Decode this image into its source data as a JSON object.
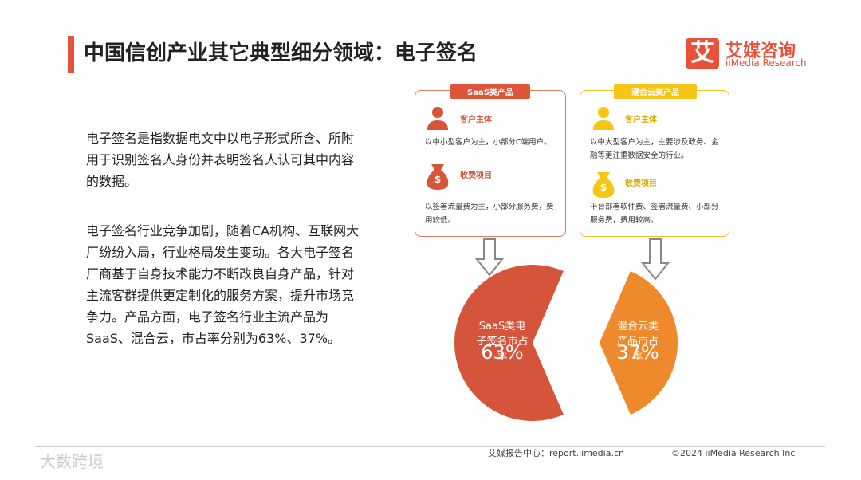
{
  "header": {
    "title": "中国信创产业其它典型细分领域：电子签名",
    "logo_mark": "艾",
    "logo_cn": "艾媒咨询",
    "logo_en": "iiMedia Research"
  },
  "body": {
    "paragraphs": [
      "电子签名是指数据电文中以电子形式所含、所附用于识别签名人身份并表明签名人认可其中内容的数据。",
      "电子签名行业竞争加剧，随着CA机构、互联网大厂纷纷入局，行业格局发生变动。各大电子签名厂商基于自身技术能力不断改良自身产品，针对主流客群提供更定制化的服务方案，提升市场竞争力。产品方面，电子签名行业主流产品为SaaS、混合云，市占率分别为63%、37%。"
    ]
  },
  "cards": [
    {
      "tag": "SaaS类产品",
      "sections": [
        {
          "heading": "客户主体",
          "text": "以中小型客户为主，小部分C端用户。"
        },
        {
          "heading": "收费项目",
          "icon": "$",
          "text": "以签署流量费为主，小部分服务费，费用较低。"
        }
      ]
    },
    {
      "tag": "混合云类产品",
      "sections": [
        {
          "heading": "客户主体",
          "text": "以中大型客户为主，主要涉及政务、金融等更注重数据安全的行业。"
        },
        {
          "heading": "收费项目",
          "icon": "$",
          "text": "平台部署软件费、签署流量费、小部分服务费，费用较高。"
        }
      ]
    }
  ],
  "chart_data": {
    "type": "pie",
    "categories": [
      "SaaS类电子签名市占率",
      "混合云类产品市占率"
    ],
    "values": [
      63,
      37
    ],
    "value_labels": [
      "63%",
      "37%"
    ],
    "colors": [
      "#d5553b",
      "#ef8a2c"
    ],
    "exploded": true
  },
  "footer": {
    "source": "艾媒报告中心：report.iimedia.cn",
    "copyright": "©2024  iiMedia Research  Inc"
  },
  "watermark": "大数跨境"
}
